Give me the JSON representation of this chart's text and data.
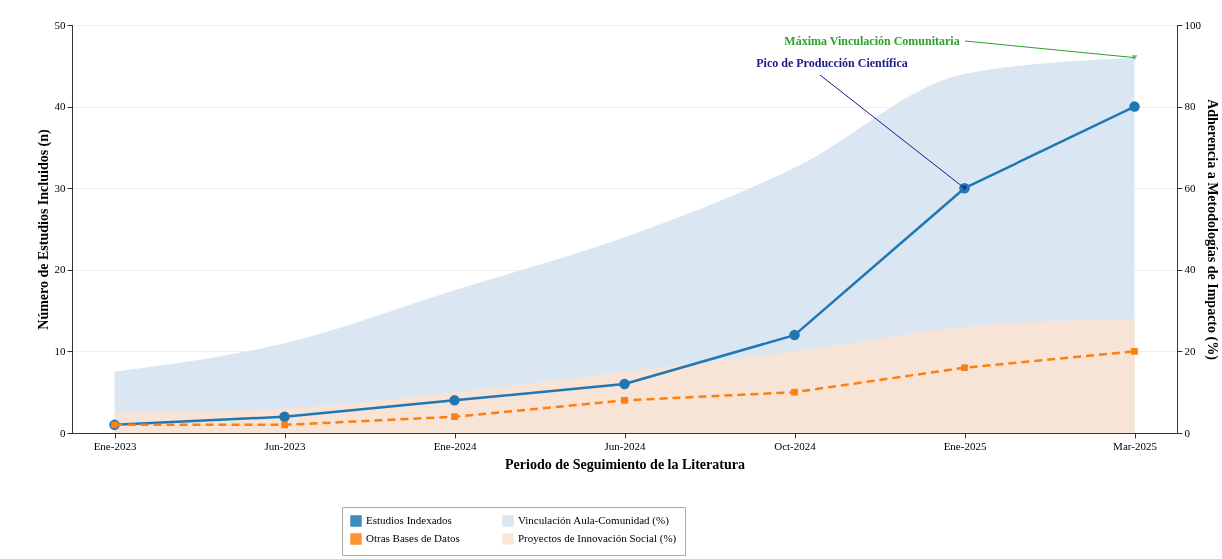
{
  "chart_data": {
    "type": "line",
    "xlabel": "Periodo de Seguimiento de la Literatura",
    "ylabel": "Número de Estudios Incluidos (n)",
    "y2label": "Adherencia a Metodologías de Impacto (%)",
    "categories": [
      "Ene-2023",
      "Jun-2023",
      "Ene-2024",
      "Jun-2024",
      "Oct-2024",
      "Ene-2025",
      "Mar-2025"
    ],
    "series": [
      {
        "name": "Estudios Indexados",
        "color": "#1f77b4",
        "marker": "circle",
        "line_style": "solid",
        "values": [
          1,
          2,
          4,
          6,
          12,
          30,
          40
        ]
      },
      {
        "name": "Otras Bases de Datos",
        "color": "#ff7f0e",
        "marker": "square",
        "line_style": "dashed",
        "values": [
          1,
          1,
          2,
          4,
          5,
          8,
          10
        ]
      },
      {
        "name": "Vinculación Aula-Comunidad (%)",
        "type": "area",
        "axis": "y2",
        "color": "#d3e3f1",
        "values": [
          15,
          22,
          35,
          48,
          65,
          88,
          92
        ]
      },
      {
        "name": "Proyectos de Innovación Social (%)",
        "type": "area",
        "axis": "y2",
        "color": "#fbe3d0",
        "values": [
          5,
          6,
          10,
          15,
          20,
          26,
          28
        ]
      }
    ],
    "ylim": [
      0,
      50
    ],
    "yticks": [
      0,
      10,
      20,
      30,
      40,
      50
    ],
    "y2lim": [
      0,
      100
    ],
    "y2ticks": [
      0,
      20,
      40,
      60,
      80,
      100
    ],
    "grid": "y",
    "legend": "bottom",
    "annotations": [
      {
        "text": "Máxima Vinculación Comunitaria",
        "x": "Mar-2025",
        "y": 46
      },
      {
        "text": "Pico de Producción Científica",
        "x": "Ene-2025",
        "y": 30
      }
    ]
  }
}
